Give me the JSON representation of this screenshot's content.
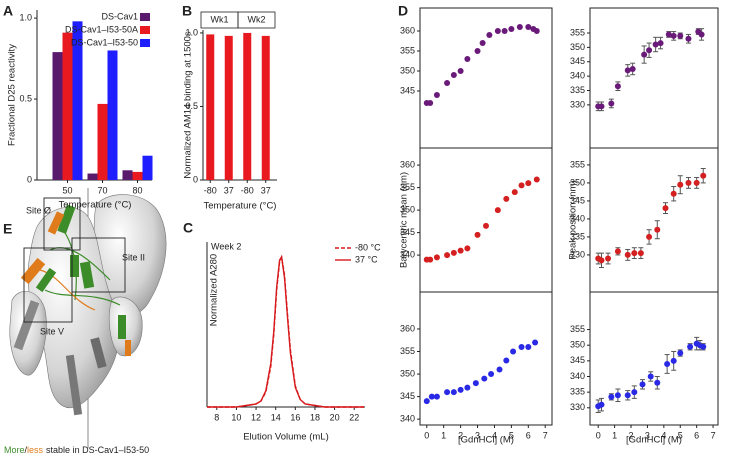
{
  "chart_data": [
    {
      "type": "bar",
      "panel": "A",
      "categories": [
        "50",
        "70",
        "80"
      ],
      "series": [
        {
          "name": "DS-Cav1",
          "color": "#5a1a6c",
          "values": [
            0.79,
            0.04,
            0.06
          ]
        },
        {
          "name": "DS-Cav1–I53-50A",
          "color": "#e8191f",
          "values": [
            0.91,
            0.47,
            0.05
          ]
        },
        {
          "name": "DS-Cav1–I53-50",
          "color": "#1e1eff",
          "values": [
            0.98,
            0.8,
            0.15
          ]
        }
      ],
      "ylim": [
        0,
        1.05
      ],
      "yticks": [
        0,
        0.5,
        {
          "value": 1,
          "label": "1.0"
        }
      ],
      "y_label": "Fractional D25 reactivity",
      "x_label": "Temperature (°C)"
    },
    {
      "type": "bar",
      "panel": "B",
      "categories": [
        "-80",
        "37",
        "-80",
        "37"
      ],
      "groups": [
        "Wk1",
        "Wk2"
      ],
      "values": [
        0.99,
        0.98,
        1.0,
        0.98
      ],
      "color": "#e8191f",
      "ylim": [
        0,
        1.02
      ],
      "yticks": [
        0,
        0.5,
        {
          "value": 1,
          "label": "1.0"
        }
      ],
      "y_label": "Normalized AM14 binding at 1500s",
      "x_label": "Temperature (°C)"
    },
    {
      "type": "line",
      "panel": "C",
      "annotation": "Week 2",
      "x": [
        7,
        8,
        9,
        10,
        11,
        12,
        12.5,
        13,
        13.5,
        13.8,
        14.1,
        14.4,
        14.6,
        14.9,
        15.2,
        15.5,
        16,
        16.5,
        17,
        18,
        19,
        20,
        21,
        22,
        23
      ],
      "series": [
        {
          "name": "-80 °C",
          "color": "#d7191c",
          "dash": true,
          "values": [
            0,
            0,
            0,
            0,
            0.01,
            0.02,
            0.04,
            0.1,
            0.27,
            0.48,
            0.78,
            0.97,
            1.0,
            0.88,
            0.62,
            0.38,
            0.14,
            0.05,
            0.02,
            0.01,
            0,
            0,
            0,
            0,
            0
          ]
        },
        {
          "name": "37 °C",
          "color": "#d7191c",
          "dash": false,
          "values": [
            0,
            0,
            0,
            0,
            0.01,
            0.02,
            0.04,
            0.11,
            0.29,
            0.5,
            0.8,
            0.98,
            1.0,
            0.86,
            0.6,
            0.36,
            0.13,
            0.05,
            0.02,
            0.01,
            0,
            0,
            0,
            0,
            0
          ]
        }
      ],
      "xlim": [
        7,
        23.1
      ],
      "xticks": [
        8,
        10,
        12,
        14,
        16,
        18,
        20,
        22
      ],
      "ylim": [
        0,
        1.1
      ],
      "y_label": "Normalized A280",
      "x_label": "Elution Volume (mL)"
    },
    {
      "type": "scatter",
      "panel": "D",
      "color": "#6a1b7a",
      "x": [
        0,
        0.2,
        0.6,
        1.2,
        1.6,
        2.0,
        2.4,
        3.0,
        3.3,
        3.7,
        4.2,
        4.6,
        5.0,
        5.5,
        6.0,
        6.3,
        6.5
      ],
      "values": [
        342,
        342,
        344,
        347,
        349,
        350,
        353,
        355,
        357,
        359,
        360,
        360,
        360.5,
        361,
        361,
        360.5,
        360
      ],
      "xlim": [
        -0.4,
        7.4
      ],
      "ylim": [
        330.75,
        365.75
      ],
      "yticks": [
        345,
        350,
        355,
        360
      ]
    },
    {
      "type": "scatter",
      "color": "#6a1b7a",
      "x": [
        0,
        0.2,
        0.8,
        1.2,
        1.8,
        2.1,
        2.8,
        3.1,
        3.5,
        3.8,
        4.3,
        4.6,
        5.0,
        5.5,
        6.1,
        6.3
      ],
      "values": [
        329.5,
        329.5,
        330.5,
        336.5,
        342,
        342.5,
        347.5,
        349,
        351,
        351.5,
        354.5,
        354,
        354,
        353,
        355.5,
        354.5
      ],
      "errors": [
        1.5,
        1.5,
        1.5,
        1.5,
        2,
        2,
        3,
        2.5,
        2.5,
        2,
        1,
        1.5,
        1,
        1.5,
        1,
        2
      ],
      "xlim": [
        -0.5,
        7.3
      ],
      "ylim": [
        315,
        363.7
      ],
      "yticks": [
        330,
        335,
        340,
        345,
        350,
        355
      ]
    },
    {
      "type": "scatter",
      "color": "#d42020",
      "x": [
        0,
        0.2,
        0.6,
        1.2,
        1.6,
        2.0,
        2.4,
        3.0,
        3.5,
        4.2,
        4.7,
        5.2,
        5.6,
        6.0,
        6.5
      ],
      "values": [
        339,
        339,
        339.5,
        340,
        340.5,
        341,
        341.5,
        344.5,
        346.5,
        350,
        352.5,
        354,
        355.5,
        356,
        356.8
      ],
      "xlim": [
        -0.4,
        7.4
      ],
      "ylim": [
        331.8,
        363.8
      ],
      "yticks": [
        340,
        345,
        350,
        355,
        360
      ],
      "y_label": "Barycentric mean (nm)"
    },
    {
      "type": "scatter",
      "color": "#d42020",
      "x": [
        0,
        0.2,
        0.6,
        1.2,
        1.8,
        2.2,
        2.6,
        3.1,
        3.6,
        4.1,
        4.6,
        5.0,
        5.5,
        6.0,
        6.4
      ],
      "values": [
        329,
        328.5,
        329,
        331,
        330,
        330.5,
        330.5,
        335,
        337,
        343,
        347,
        349.5,
        350,
        350,
        352
      ],
      "errors": [
        1.5,
        2,
        1.5,
        1,
        1.5,
        1.5,
        1.5,
        2,
        2.5,
        1.5,
        2,
        2.5,
        1.5,
        1.5,
        2
      ],
      "xlim": [
        -0.5,
        7.3
      ],
      "ylim": [
        319.7,
        359.7
      ],
      "yticks": [
        330,
        335,
        340,
        345,
        350,
        355
      ],
      "y_label": "Peak position (nm)"
    },
    {
      "type": "scatter",
      "color": "#2a2ae6",
      "x": [
        0,
        0.3,
        0.6,
        1.2,
        1.6,
        2.0,
        2.4,
        2.9,
        3.4,
        3.8,
        4.3,
        4.7,
        5.1,
        5.6,
        6.0,
        6.4
      ],
      "values": [
        344,
        345,
        345,
        346,
        346,
        346.5,
        347,
        348,
        349,
        350,
        351,
        353,
        355,
        356,
        356,
        357
      ],
      "xlim": [
        -0.4,
        7.4
      ],
      "xticks": [
        0,
        1,
        2,
        3,
        4,
        5,
        6,
        7
      ],
      "ylim": [
        338.7,
        368.2
      ],
      "yticks": [
        340,
        345,
        350,
        355,
        360
      ],
      "x_label": "[GdnHCl] (M)"
    },
    {
      "type": "scatter",
      "color": "#2a2ae6",
      "x": [
        0,
        0.2,
        0.8,
        1.2,
        1.8,
        2.2,
        2.7,
        3.2,
        3.6,
        4.2,
        4.6,
        5.0,
        5.6,
        6.0,
        6.2,
        6.4
      ],
      "values": [
        330.5,
        331,
        333.5,
        334,
        334,
        335,
        337.5,
        340,
        338,
        344,
        345,
        347.5,
        349.5,
        350.5,
        350,
        349.5
      ],
      "errors": [
        2,
        2,
        1,
        2,
        1.5,
        2,
        1.5,
        1.5,
        2,
        3,
        3,
        1,
        1,
        2,
        1.5,
        1
      ],
      "xlim": [
        -0.5,
        7.3
      ],
      "xticks": [
        0,
        1,
        2,
        3,
        4,
        5,
        6,
        7
      ],
      "ylim": [
        324.5,
        367
      ],
      "yticks": [
        330,
        335,
        340,
        345,
        350,
        355
      ],
      "x_label": "[GdnHCl] (M)"
    }
  ],
  "panel_e": {
    "label": "E",
    "sites": [
      "Site Ø",
      "Site II",
      "Site V"
    ],
    "caption": [
      "More",
      "/",
      "less",
      "stable in DS-Cav1–I53-50"
    ]
  }
}
